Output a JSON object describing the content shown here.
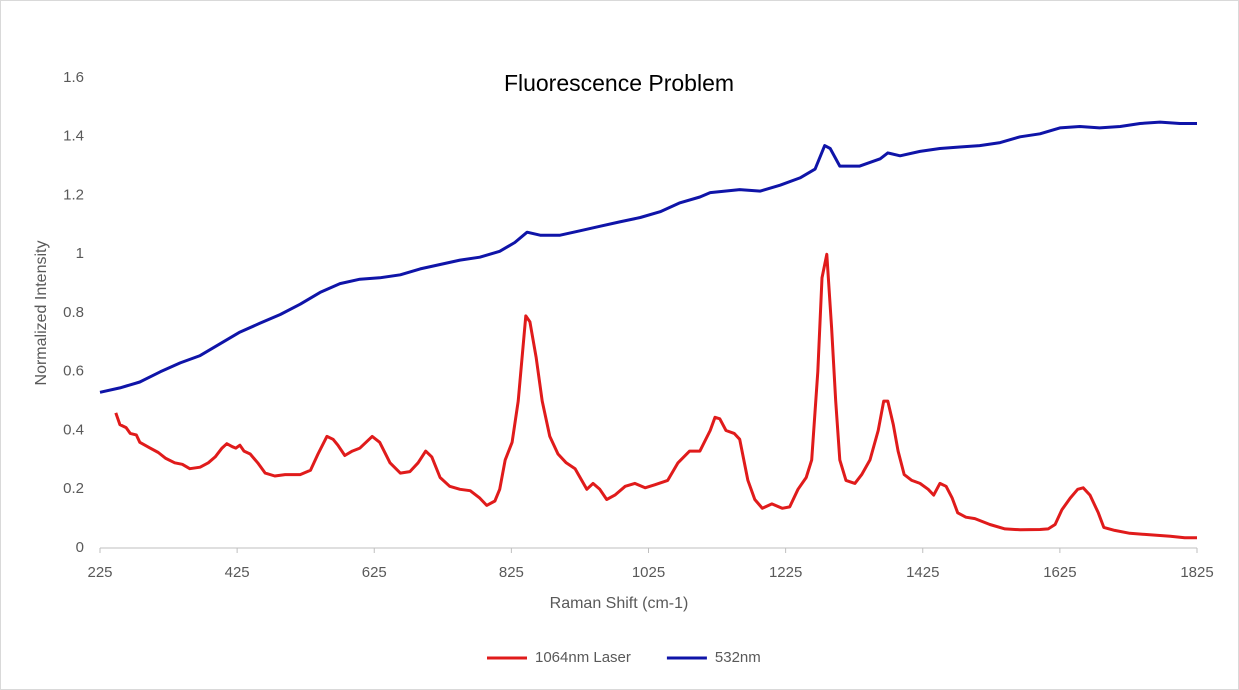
{
  "chart_data": {
    "type": "line",
    "title": "Fluorescence Problem",
    "x_label": "Raman Shift (cm-1)",
    "y_label": "Normalized Intensity",
    "xlim": [
      225,
      1825
    ],
    "xticks": [
      225,
      425,
      625,
      825,
      1025,
      1225,
      1425,
      1625,
      1825
    ],
    "ylim": [
      0,
      1.6
    ],
    "yticks": [
      0,
      0.2,
      0.4,
      0.6,
      0.8,
      1,
      1.2,
      1.4,
      1.6
    ],
    "grid": false,
    "legend": "bottom",
    "series": [
      {
        "name": "1064nm Laser",
        "color": "#e01b1b",
        "x": [
          248,
          254,
          263,
          269,
          278,
          283,
          298,
          310,
          321,
          334,
          345,
          356,
          371,
          383,
          393,
          403,
          410,
          418,
          423,
          429,
          435,
          444,
          455,
          466,
          480,
          495,
          517,
          532,
          543,
          556,
          565,
          572,
          582,
          593,
          604,
          613,
          622,
          633,
          648,
          663,
          677,
          689,
          700,
          709,
          721,
          735,
          750,
          765,
          779,
          789,
          801,
          808,
          816,
          826,
          835,
          846,
          852,
          861,
          870,
          881,
          893,
          905,
          918,
          935,
          944,
          954,
          964,
          976,
          991,
          1005,
          1020,
          1034,
          1053,
          1068,
          1085,
          1100,
          1115,
          1122,
          1129,
          1138,
          1150,
          1158,
          1170,
          1180,
          1191,
          1205,
          1220,
          1231,
          1243,
          1255,
          1263,
          1272,
          1278,
          1285,
          1292,
          1298,
          1304,
          1313,
          1326,
          1336,
          1348,
          1360,
          1368,
          1374,
          1382,
          1389,
          1398,
          1409,
          1421,
          1433,
          1441,
          1450,
          1459,
          1468,
          1476,
          1488,
          1501,
          1523,
          1545,
          1567,
          1596,
          1608,
          1618,
          1628,
          1640,
          1651,
          1659,
          1669,
          1681,
          1689,
          1705,
          1727,
          1756,
          1786,
          1807,
          1825
        ],
        "values": [
          0.46,
          0.42,
          0.41,
          0.39,
          0.385,
          0.36,
          0.34,
          0.325,
          0.305,
          0.29,
          0.285,
          0.27,
          0.275,
          0.29,
          0.31,
          0.34,
          0.355,
          0.345,
          0.34,
          0.35,
          0.33,
          0.32,
          0.29,
          0.255,
          0.245,
          0.25,
          0.25,
          0.265,
          0.32,
          0.38,
          0.37,
          0.35,
          0.315,
          0.33,
          0.34,
          0.36,
          0.38,
          0.36,
          0.29,
          0.255,
          0.26,
          0.29,
          0.33,
          0.31,
          0.24,
          0.21,
          0.2,
          0.195,
          0.17,
          0.145,
          0.16,
          0.2,
          0.3,
          0.36,
          0.5,
          0.79,
          0.77,
          0.65,
          0.5,
          0.38,
          0.32,
          0.29,
          0.27,
          0.2,
          0.22,
          0.2,
          0.165,
          0.18,
          0.21,
          0.22,
          0.205,
          0.215,
          0.23,
          0.29,
          0.33,
          0.33,
          0.4,
          0.445,
          0.44,
          0.4,
          0.39,
          0.37,
          0.23,
          0.165,
          0.135,
          0.15,
          0.135,
          0.14,
          0.2,
          0.24,
          0.3,
          0.6,
          0.92,
          1.0,
          0.75,
          0.5,
          0.3,
          0.23,
          0.22,
          0.25,
          0.3,
          0.4,
          0.5,
          0.5,
          0.42,
          0.33,
          0.25,
          0.23,
          0.22,
          0.2,
          0.18,
          0.22,
          0.21,
          0.17,
          0.12,
          0.105,
          0.1,
          0.08,
          0.065,
          0.062,
          0.063,
          0.065,
          0.08,
          0.13,
          0.17,
          0.2,
          0.205,
          0.18,
          0.12,
          0.07,
          0.06,
          0.05,
          0.045,
          0.04,
          0.035,
          0.035
        ]
      },
      {
        "name": "532nm",
        "color": "#0f14a8",
        "x": [
          225,
          254,
          283,
          313,
          342,
          371,
          400,
          429,
          458,
          488,
          517,
          546,
          575,
          604,
          633,
          663,
          692,
          721,
          750,
          779,
          808,
          830,
          848,
          867,
          896,
          925,
          954,
          983,
          1013,
          1042,
          1071,
          1100,
          1115,
          1158,
          1188,
          1217,
          1246,
          1268,
          1282,
          1290,
          1304,
          1333,
          1363,
          1374,
          1392,
          1421,
          1450,
          1479,
          1508,
          1538,
          1567,
          1596,
          1625,
          1654,
          1683,
          1713,
          1742,
          1771,
          1800,
          1825
        ],
        "values": [
          0.53,
          0.545,
          0.565,
          0.6,
          0.63,
          0.655,
          0.695,
          0.735,
          0.765,
          0.795,
          0.83,
          0.87,
          0.9,
          0.915,
          0.92,
          0.93,
          0.95,
          0.965,
          0.98,
          0.99,
          1.01,
          1.04,
          1.075,
          1.065,
          1.065,
          1.08,
          1.095,
          1.11,
          1.125,
          1.145,
          1.175,
          1.195,
          1.21,
          1.22,
          1.215,
          1.235,
          1.26,
          1.29,
          1.37,
          1.36,
          1.3,
          1.3,
          1.325,
          1.345,
          1.335,
          1.35,
          1.36,
          1.365,
          1.37,
          1.38,
          1.4,
          1.41,
          1.43,
          1.435,
          1.43,
          1.435,
          1.445,
          1.45,
          1.445,
          1.445
        ]
      }
    ]
  }
}
